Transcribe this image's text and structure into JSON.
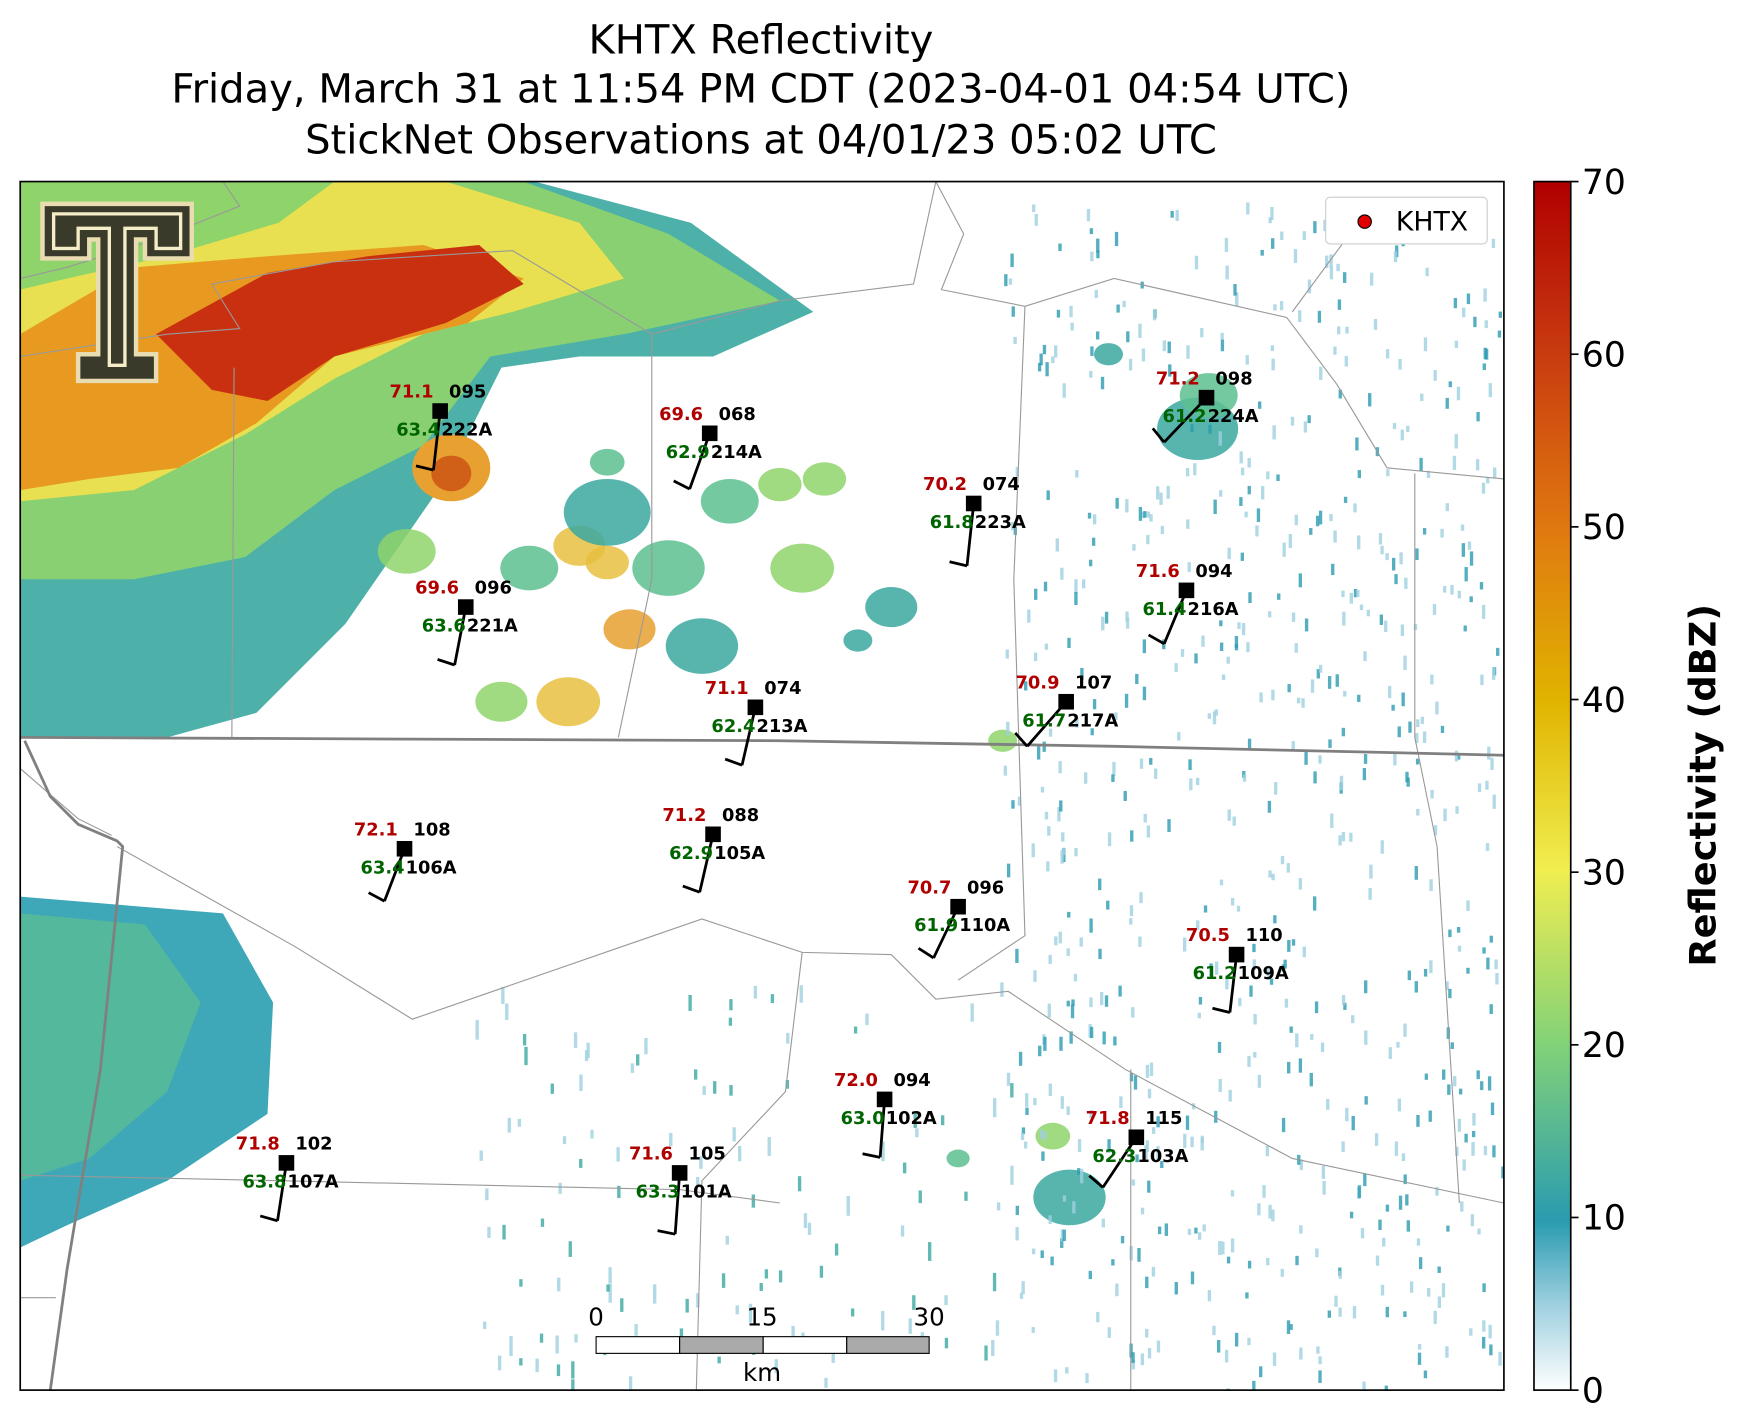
{
  "title": [
    "KHTX Reflectivity",
    "Friday, March 31 at 11:54 PM CDT (2023-04-01 04:54 UTC)",
    "StickNet Observations at 04/01/23 05:02 UTC"
  ],
  "legend": "KHTX",
  "scale_bar": {
    "labels": [
      "0",
      "15",
      "30"
    ],
    "unit": "km"
  },
  "colorbar": {
    "label": "Reflectivity (dBZ)",
    "lim": [
      0,
      70
    ],
    "ticks": [
      0,
      10,
      20,
      30,
      40,
      50,
      60,
      70
    ]
  },
  "stations": [
    {
      "id": "222A",
      "temp": "71.1",
      "dew": "63.4",
      "pres": "095"
    },
    {
      "id": "214A",
      "temp": "69.6",
      "dew": "62.9",
      "pres": "068"
    },
    {
      "id": "223A",
      "temp": "70.2",
      "dew": "61.8",
      "pres": "074"
    },
    {
      "id": "224A",
      "temp": "71.2",
      "dew": "61.2",
      "pres": "098"
    },
    {
      "id": "221A",
      "temp": "69.6",
      "dew": "63.6",
      "pres": "096"
    },
    {
      "id": "216A",
      "temp": "71.6",
      "dew": "61.4",
      "pres": "094"
    },
    {
      "id": "213A",
      "temp": "71.1",
      "dew": "62.4",
      "pres": "074"
    },
    {
      "id": "217A",
      "temp": "70.9",
      "dew": "61.7",
      "pres": "107"
    },
    {
      "id": "106A",
      "temp": "72.1",
      "dew": "63.4",
      "pres": "108"
    },
    {
      "id": "105A",
      "temp": "71.2",
      "dew": "62.9",
      "pres": "088"
    },
    {
      "id": "110A",
      "temp": "70.7",
      "dew": "61.9",
      "pres": "096"
    },
    {
      "id": "109A",
      "temp": "70.5",
      "dew": "61.2",
      "pres": "110"
    },
    {
      "id": "102A",
      "temp": "72.0",
      "dew": "63.0",
      "pres": "094"
    },
    {
      "id": "103A",
      "temp": "71.8",
      "dew": "62.3",
      "pres": "115"
    },
    {
      "id": "107A",
      "temp": "71.8",
      "dew": "63.8",
      "pres": "102"
    },
    {
      "id": "101A",
      "temp": "71.6",
      "dew": "63.3",
      "pres": "105"
    }
  ]
}
